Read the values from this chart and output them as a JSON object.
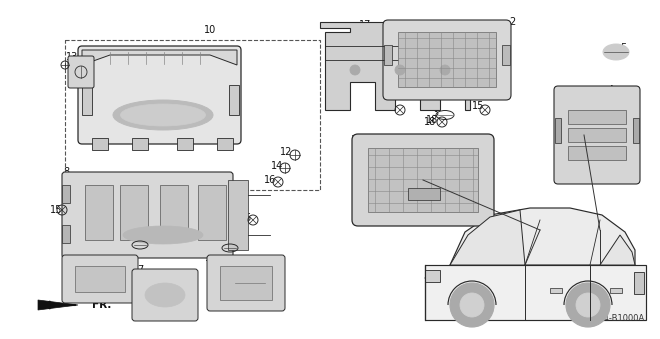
{
  "diagram_code": "SDR4-B1000A",
  "background_color": "#ffffff",
  "fr_label": "FR."
}
